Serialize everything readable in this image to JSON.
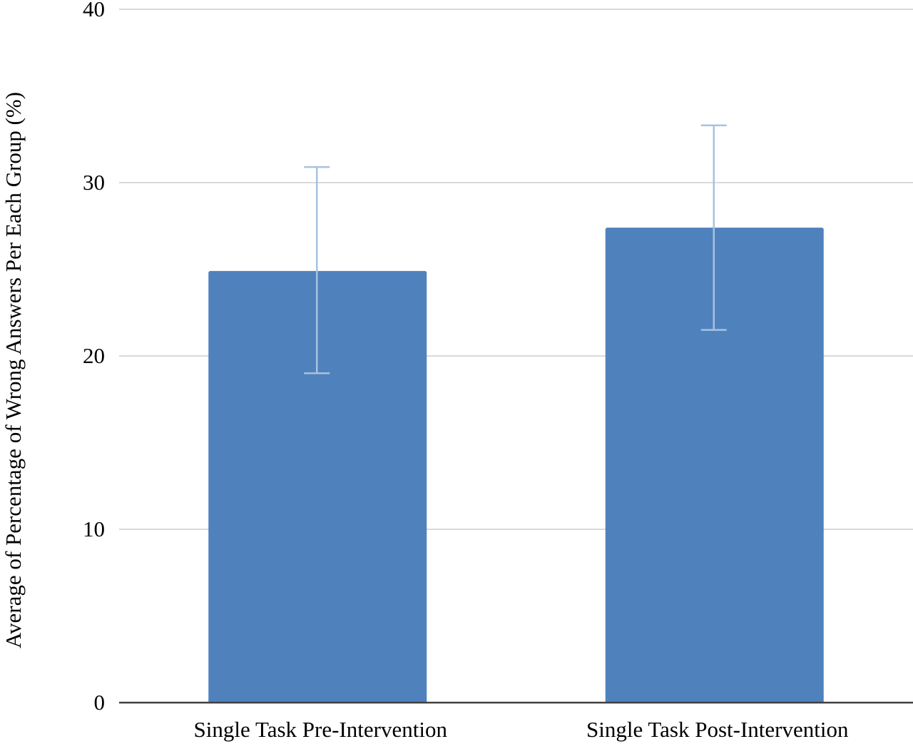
{
  "chart_data": {
    "type": "bar",
    "title": "",
    "xlabel": "",
    "ylabel": "Average of Percentage of Wrong Answers Per Each Group (%)",
    "categories": [
      "Single Task Pre-Intervention",
      "Single Task Post-Intervention"
    ],
    "series": [
      {
        "values": [
          24.9,
          27.4
        ],
        "error_low": [
          19.0,
          21.5
        ],
        "error_high": [
          30.9,
          33.3
        ]
      }
    ],
    "ylim": [
      0,
      40
    ],
    "yticks": [
      0,
      10,
      20,
      30,
      40
    ],
    "grid": true,
    "legend": "none",
    "colors": {
      "bar": "#4f81bd",
      "error_bar": "#a7c2e0",
      "grid": "#d9d9d9",
      "axis": "#404040"
    }
  }
}
